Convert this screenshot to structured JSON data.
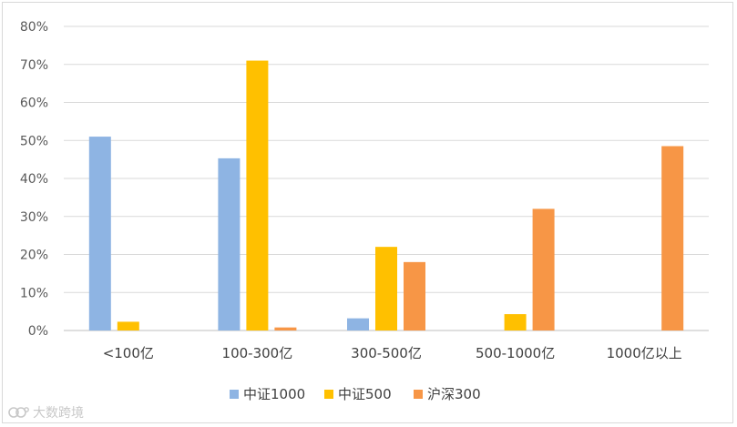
{
  "chart_data": {
    "type": "bar",
    "categories": [
      "<100亿",
      "100-300亿",
      "300-500亿",
      "500-1000亿",
      "1000亿以上"
    ],
    "series": [
      {
        "name": "中证1000",
        "color": "#8eb4e3",
        "values": [
          51,
          45.3,
          3.2,
          0,
          0
        ]
      },
      {
        "name": "中证500",
        "color": "#ffc000",
        "values": [
          2.3,
          71,
          22,
          4.3,
          0
        ]
      },
      {
        "name": "沪深300",
        "color": "#f79646",
        "values": [
          0,
          0.8,
          18,
          32,
          48.5
        ]
      }
    ],
    "ylim": [
      0,
      80
    ],
    "yticks": [
      "0%",
      "10%",
      "20%",
      "30%",
      "40%",
      "50%",
      "60%",
      "70%",
      "80%"
    ],
    "grid": true,
    "legend": "bottom"
  },
  "watermark": {
    "text": "大数跨境",
    "icon": "cloud-logo"
  }
}
